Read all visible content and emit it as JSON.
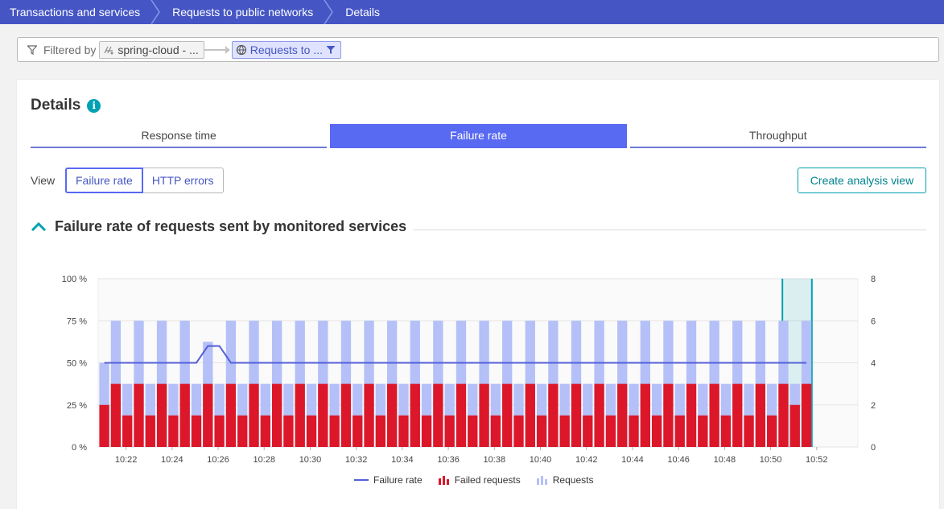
{
  "breadcrumbs": [
    "Transactions and services",
    "Requests to public networks",
    "Details"
  ],
  "filter": {
    "label": "Filtered by",
    "chip1": "spring-cloud - ...",
    "chip2": "Requests to ..."
  },
  "details": {
    "title": "Details",
    "info_icon": "info-icon",
    "tabs": [
      "Response time",
      "Failure rate",
      "Throughput"
    ],
    "active_tab": "Failure rate",
    "view_label": "View",
    "view_options": [
      "Failure rate",
      "HTTP errors"
    ],
    "active_view": "Failure rate",
    "create_button": "Create analysis view",
    "section_title": "Failure rate of requests sent by monitored services"
  },
  "colors": {
    "brand": "#4556c4",
    "accent": "#5869f2",
    "failed": "#dc172a",
    "requests": "#b4c0f7",
    "line": "#5360d8",
    "teal": "#00a1b2"
  },
  "chart_data": {
    "type": "bar",
    "x_ticks": [
      "10:22",
      "10:24",
      "10:26",
      "10:28",
      "10:30",
      "10:32",
      "10:34",
      "10:36",
      "10:38",
      "10:40",
      "10:42",
      "10:44",
      "10:46",
      "10:48",
      "10:50",
      "10:52"
    ],
    "y_left_ticks": [
      "100 %",
      "75 %",
      "50 %",
      "25 %",
      "0 %"
    ],
    "y_right_ticks": [
      "8",
      "6",
      "4",
      "2",
      "0"
    ],
    "y_left_range": [
      0,
      100
    ],
    "y_right_range": [
      0,
      8
    ],
    "legend": [
      "Failure rate",
      "Failed requests",
      "Requests"
    ],
    "legend_placement": "bottom",
    "bucket_minutes": 0.5,
    "requests": [
      4,
      6,
      3,
      6,
      3,
      6,
      3,
      6,
      3,
      5,
      3,
      6,
      3,
      6,
      3,
      6,
      3,
      6,
      3,
      6,
      3,
      6,
      3,
      6,
      3,
      6,
      3,
      6,
      3,
      6,
      3,
      6,
      3,
      6,
      3,
      6,
      3,
      6,
      3,
      6,
      3,
      6,
      3,
      6,
      3,
      6,
      3,
      6,
      3,
      6,
      3,
      6,
      3,
      6,
      3,
      6,
      3,
      6,
      3,
      6,
      3,
      6
    ],
    "failed_requests": [
      2,
      3,
      1.5,
      3,
      1.5,
      3,
      1.5,
      3,
      1.5,
      3,
      1.5,
      3,
      1.5,
      3,
      1.5,
      3,
      1.5,
      3,
      1.5,
      3,
      1.5,
      3,
      1.5,
      3,
      1.5,
      3,
      1.5,
      3,
      1.5,
      3,
      1.5,
      3,
      1.5,
      3,
      1.5,
      3,
      1.5,
      3,
      1.5,
      3,
      1.5,
      3,
      1.5,
      3,
      1.5,
      3,
      1.5,
      3,
      1.5,
      3,
      1.5,
      3,
      1.5,
      3,
      1.5,
      3,
      1.5,
      3,
      1.5,
      3,
      2,
      3
    ],
    "failure_rate": [
      50,
      50,
      50,
      50,
      50,
      50,
      50,
      50,
      50,
      60,
      60,
      50,
      50,
      50,
      50,
      50,
      50,
      50,
      50,
      50,
      50,
      50,
      50,
      50,
      50,
      50,
      50,
      50,
      50,
      50,
      50,
      50,
      50,
      50,
      50,
      50,
      50,
      50,
      50,
      50,
      50,
      50,
      50,
      50,
      50,
      50,
      50,
      50,
      50,
      50,
      50,
      50,
      50,
      50,
      50,
      50,
      50,
      50,
      50,
      50,
      50,
      50
    ],
    "selection": [
      "10:51",
      "10:52"
    ]
  }
}
